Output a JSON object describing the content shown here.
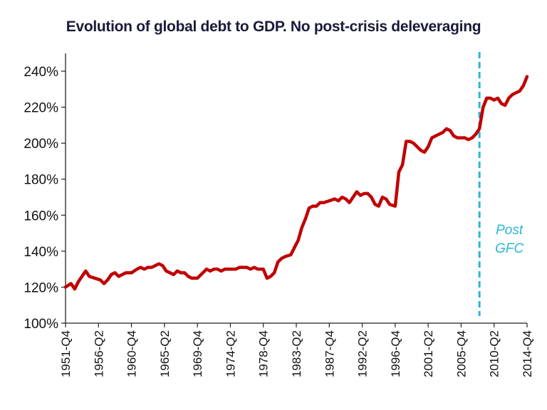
{
  "chart_data": {
    "type": "line",
    "title": "Evolution of global debt to GDP. No post-crisis deleveraging",
    "xlabel": "",
    "ylabel": "",
    "ylim": [
      100,
      240
    ],
    "y_ticks": [
      "100%",
      "120%",
      "140%",
      "160%",
      "180%",
      "200%",
      "220%",
      "240%"
    ],
    "y_tick_values": [
      100,
      120,
      140,
      160,
      180,
      200,
      220,
      240
    ],
    "x_tick_labels": [
      "1951-Q4",
      "1956-Q2",
      "1960-Q4",
      "1965-Q2",
      "1969-Q4",
      "1974-Q2",
      "1978-Q4",
      "1983-Q2",
      "1987-Q4",
      "1992-Q2",
      "1996-Q4",
      "2001-Q2",
      "2005-Q4",
      "2010-Q2",
      "2014-Q4"
    ],
    "x_tick_values": [
      1951.75,
      1956.25,
      1960.75,
      1965.25,
      1969.75,
      1974.25,
      1978.75,
      1983.25,
      1987.75,
      1992.25,
      1996.75,
      2001.25,
      2005.75,
      2010.25,
      2014.75
    ],
    "xlim": [
      1951.75,
      2014.75
    ],
    "series": [
      {
        "color": "#c00000",
        "points": [
          [
            1951.75,
            120
          ],
          [
            1952.5,
            122
          ],
          [
            1953.0,
            119
          ],
          [
            1953.5,
            123
          ],
          [
            1954.0,
            126
          ],
          [
            1954.5,
            129
          ],
          [
            1955.0,
            126
          ],
          [
            1955.75,
            125
          ],
          [
            1956.5,
            124
          ],
          [
            1957.0,
            122
          ],
          [
            1957.5,
            124
          ],
          [
            1958.0,
            127
          ],
          [
            1958.5,
            128
          ],
          [
            1959.0,
            126
          ],
          [
            1959.5,
            127
          ],
          [
            1960.0,
            128
          ],
          [
            1960.75,
            128
          ],
          [
            1961.5,
            130
          ],
          [
            1962.0,
            131
          ],
          [
            1962.5,
            130
          ],
          [
            1963.0,
            131
          ],
          [
            1963.5,
            131
          ],
          [
            1964.0,
            132
          ],
          [
            1964.5,
            133
          ],
          [
            1965.0,
            132
          ],
          [
            1965.5,
            129
          ],
          [
            1966.0,
            128
          ],
          [
            1966.5,
            127
          ],
          [
            1967.0,
            129
          ],
          [
            1967.5,
            128
          ],
          [
            1968.0,
            128
          ],
          [
            1968.5,
            126
          ],
          [
            1969.0,
            125
          ],
          [
            1969.75,
            125
          ],
          [
            1970.5,
            128
          ],
          [
            1971.0,
            130
          ],
          [
            1971.5,
            129
          ],
          [
            1972.0,
            130
          ],
          [
            1972.5,
            130
          ],
          [
            1973.0,
            129
          ],
          [
            1973.5,
            130
          ],
          [
            1974.25,
            130
          ],
          [
            1975.0,
            130
          ],
          [
            1975.5,
            131
          ],
          [
            1976.0,
            131
          ],
          [
            1976.5,
            131
          ],
          [
            1977.0,
            130
          ],
          [
            1977.5,
            131
          ],
          [
            1978.0,
            130
          ],
          [
            1978.75,
            130
          ],
          [
            1979.25,
            125
          ],
          [
            1979.75,
            126
          ],
          [
            1980.25,
            128
          ],
          [
            1980.75,
            134
          ],
          [
            1981.25,
            136
          ],
          [
            1981.75,
            137
          ],
          [
            1982.5,
            138
          ],
          [
            1983.0,
            142
          ],
          [
            1983.5,
            146
          ],
          [
            1984.0,
            153
          ],
          [
            1984.5,
            158
          ],
          [
            1985.0,
            164
          ],
          [
            1985.5,
            165
          ],
          [
            1986.0,
            165
          ],
          [
            1986.5,
            167
          ],
          [
            1987.0,
            167
          ],
          [
            1987.75,
            168
          ],
          [
            1988.5,
            169
          ],
          [
            1989.0,
            168
          ],
          [
            1989.5,
            170
          ],
          [
            1990.0,
            169
          ],
          [
            1990.5,
            167
          ],
          [
            1991.0,
            170
          ],
          [
            1991.5,
            173
          ],
          [
            1992.0,
            171
          ],
          [
            1992.5,
            172
          ],
          [
            1993.0,
            172
          ],
          [
            1993.5,
            170
          ],
          [
            1994.0,
            166
          ],
          [
            1994.5,
            165
          ],
          [
            1995.0,
            170
          ],
          [
            1995.5,
            169
          ],
          [
            1996.0,
            166
          ],
          [
            1996.75,
            165
          ],
          [
            1997.25,
            184
          ],
          [
            1997.75,
            188
          ],
          [
            1998.25,
            201
          ],
          [
            1998.75,
            201
          ],
          [
            1999.25,
            200
          ],
          [
            1999.75,
            198
          ],
          [
            2000.25,
            196
          ],
          [
            2000.75,
            195
          ],
          [
            2001.25,
            198
          ],
          [
            2001.75,
            203
          ],
          [
            2002.25,
            204
          ],
          [
            2002.75,
            205
          ],
          [
            2003.25,
            206
          ],
          [
            2003.75,
            208
          ],
          [
            2004.25,
            207
          ],
          [
            2004.75,
            204
          ],
          [
            2005.25,
            203
          ],
          [
            2005.75,
            203
          ],
          [
            2006.25,
            203
          ],
          [
            2006.75,
            202
          ],
          [
            2007.25,
            203
          ],
          [
            2007.75,
            205
          ],
          [
            2008.25,
            208
          ],
          [
            2008.75,
            220
          ],
          [
            2009.25,
            225
          ],
          [
            2009.75,
            225
          ],
          [
            2010.25,
            224
          ],
          [
            2010.75,
            225
          ],
          [
            2011.25,
            222
          ],
          [
            2011.75,
            221
          ],
          [
            2012.25,
            225
          ],
          [
            2012.75,
            227
          ],
          [
            2013.25,
            228
          ],
          [
            2013.75,
            229
          ],
          [
            2014.25,
            232
          ],
          [
            2014.75,
            237
          ]
        ]
      }
    ],
    "annotations": [
      {
        "text_line1": "Post",
        "text_line2": "GFC",
        "x": 2008.25,
        "style": "dashed vertical line",
        "color": "#29b6d9"
      }
    ],
    "grid": false,
    "legend": "none"
  }
}
